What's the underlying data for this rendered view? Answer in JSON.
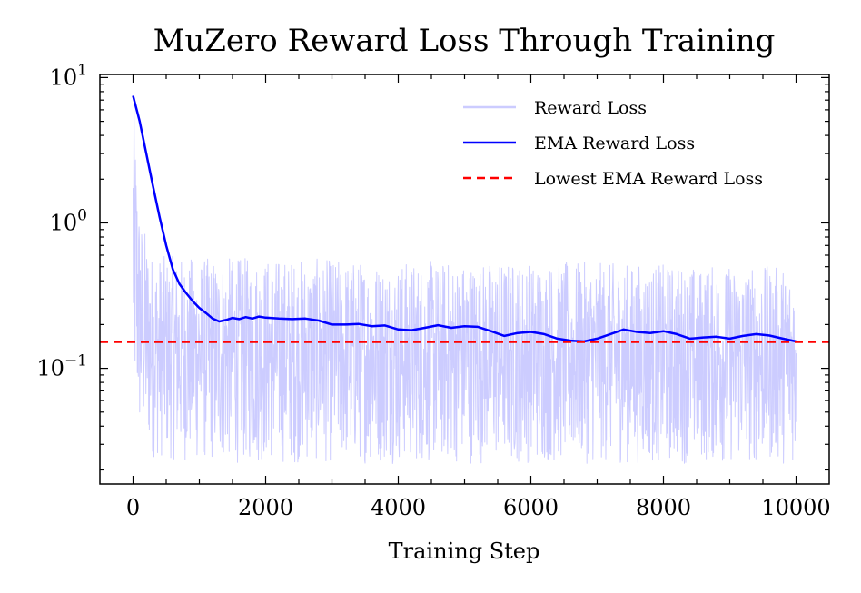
{
  "chart_data": {
    "type": "line",
    "title": "MuZero Reward Loss Through Training",
    "xlabel": "Training Step",
    "ylabel": "",
    "xlim": [
      -500,
      10500
    ],
    "ylim": [
      0.016,
      10.5
    ],
    "yscale": "log",
    "x_ticks": [
      0,
      2000,
      4000,
      6000,
      8000,
      10000
    ],
    "x_tick_labels": [
      "0",
      "2000",
      "4000",
      "6000",
      "8000",
      "10000"
    ],
    "y_ticks": [
      0.1,
      1,
      10
    ],
    "y_tick_labels": [
      {
        "base": "10",
        "exp": "−1"
      },
      {
        "base": "10",
        "exp": "0"
      },
      {
        "base": "10",
        "exp": "1"
      }
    ],
    "legend": {
      "position": "top-right",
      "frame": false
    },
    "grid": false,
    "series": [
      {
        "name": "Reward Loss",
        "color": "#ccccff",
        "style": "solid",
        "x_range": [
          0,
          10000
        ],
        "envelope": [
          {
            "x": 0,
            "upper": 9.0,
            "lower": 0.05
          },
          {
            "x": 100,
            "upper": 1.2,
            "lower": 0.03
          },
          {
            "x": 300,
            "upper": 0.6,
            "lower": 0.024
          },
          {
            "x": 1000,
            "upper": 0.58,
            "lower": 0.022
          },
          {
            "x": 2000,
            "upper": 0.58,
            "lower": 0.022
          },
          {
            "x": 4000,
            "upper": 0.55,
            "lower": 0.022
          },
          {
            "x": 6000,
            "upper": 0.55,
            "lower": 0.022
          },
          {
            "x": 8000,
            "upper": 0.52,
            "lower": 0.022
          },
          {
            "x": 10000,
            "upper": 0.5,
            "lower": 0.022
          }
        ]
      },
      {
        "name": "EMA Reward Loss",
        "color": "#0000ff",
        "style": "solid",
        "points": [
          {
            "x": 0,
            "y": 7.5
          },
          {
            "x": 100,
            "y": 5.0
          },
          {
            "x": 200,
            "y": 3.0
          },
          {
            "x": 300,
            "y": 1.8
          },
          {
            "x": 400,
            "y": 1.1
          },
          {
            "x": 500,
            "y": 0.7
          },
          {
            "x": 600,
            "y": 0.48
          },
          {
            "x": 700,
            "y": 0.38
          },
          {
            "x": 800,
            "y": 0.33
          },
          {
            "x": 900,
            "y": 0.29
          },
          {
            "x": 1000,
            "y": 0.26
          },
          {
            "x": 1100,
            "y": 0.24
          },
          {
            "x": 1200,
            "y": 0.22
          },
          {
            "x": 1300,
            "y": 0.21
          },
          {
            "x": 1400,
            "y": 0.215
          },
          {
            "x": 1500,
            "y": 0.222
          },
          {
            "x": 1600,
            "y": 0.218
          },
          {
            "x": 1700,
            "y": 0.225
          },
          {
            "x": 1800,
            "y": 0.22
          },
          {
            "x": 1900,
            "y": 0.227
          },
          {
            "x": 2000,
            "y": 0.223
          },
          {
            "x": 2200,
            "y": 0.22
          },
          {
            "x": 2400,
            "y": 0.218
          },
          {
            "x": 2600,
            "y": 0.22
          },
          {
            "x": 2800,
            "y": 0.213
          },
          {
            "x": 3000,
            "y": 0.2
          },
          {
            "x": 3200,
            "y": 0.2
          },
          {
            "x": 3400,
            "y": 0.202
          },
          {
            "x": 3600,
            "y": 0.195
          },
          {
            "x": 3800,
            "y": 0.197
          },
          {
            "x": 4000,
            "y": 0.185
          },
          {
            "x": 4200,
            "y": 0.183
          },
          {
            "x": 4400,
            "y": 0.19
          },
          {
            "x": 4600,
            "y": 0.198
          },
          {
            "x": 4800,
            "y": 0.19
          },
          {
            "x": 5000,
            "y": 0.195
          },
          {
            "x": 5200,
            "y": 0.193
          },
          {
            "x": 5400,
            "y": 0.18
          },
          {
            "x": 5600,
            "y": 0.167
          },
          {
            "x": 5800,
            "y": 0.175
          },
          {
            "x": 6000,
            "y": 0.178
          },
          {
            "x": 6200,
            "y": 0.172
          },
          {
            "x": 6400,
            "y": 0.16
          },
          {
            "x": 6600,
            "y": 0.155
          },
          {
            "x": 6800,
            "y": 0.153
          },
          {
            "x": 7000,
            "y": 0.16
          },
          {
            "x": 7200,
            "y": 0.172
          },
          {
            "x": 7400,
            "y": 0.185
          },
          {
            "x": 7600,
            "y": 0.178
          },
          {
            "x": 7800,
            "y": 0.175
          },
          {
            "x": 8000,
            "y": 0.18
          },
          {
            "x": 8200,
            "y": 0.172
          },
          {
            "x": 8400,
            "y": 0.16
          },
          {
            "x": 8600,
            "y": 0.163
          },
          {
            "x": 8800,
            "y": 0.165
          },
          {
            "x": 9000,
            "y": 0.16
          },
          {
            "x": 9200,
            "y": 0.167
          },
          {
            "x": 9400,
            "y": 0.172
          },
          {
            "x": 9600,
            "y": 0.168
          },
          {
            "x": 9800,
            "y": 0.16
          },
          {
            "x": 10000,
            "y": 0.153
          }
        ]
      },
      {
        "name": "Lowest EMA Reward Loss",
        "color": "#ff0000",
        "style": "dashed",
        "y": 0.152
      }
    ]
  }
}
